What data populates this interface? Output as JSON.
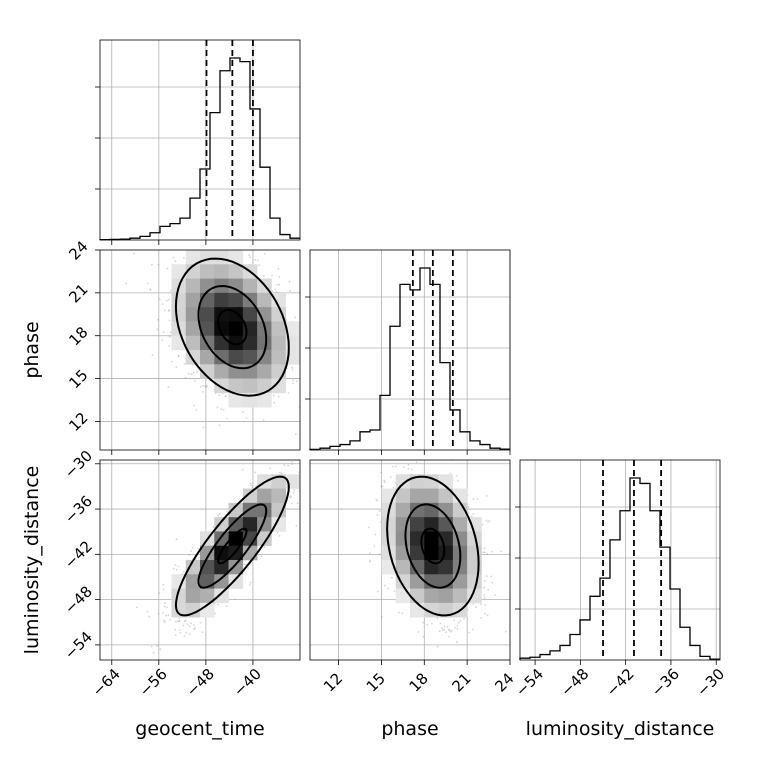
{
  "chart_data": {
    "type": "corner",
    "parameters": [
      {
        "name": "geocent_time",
        "range": [
          -66,
          -32
        ],
        "ticks": [
          -64,
          -56,
          -48,
          -40
        ],
        "tick_labels": [
          "−64",
          "−56",
          "−48",
          "−40"
        ],
        "quantiles": [
          -47.9,
          -43.5,
          -40.0
        ],
        "histogram": {
          "edges": [
            -66,
            -64.3,
            -62.6,
            -60.9,
            -59.2,
            -57.5,
            -55.8,
            -54.1,
            -52.4,
            -50.7,
            -49,
            -47.3,
            -45.6,
            -43.9,
            -42.2,
            -40.5,
            -38.8,
            -37.1,
            -35.4,
            -33.7,
            -32
          ],
          "counts": [
            0.2,
            0.3,
            0.5,
            1,
            2,
            4,
            7.5,
            9,
            12,
            23,
            39,
            70,
            93,
            100,
            98,
            72,
            40,
            12,
            3,
            1
          ]
        }
      },
      {
        "name": "phase",
        "range": [
          10,
          24
        ],
        "ticks": [
          12,
          15,
          18,
          21,
          24
        ],
        "tick_labels": [
          "12",
          "15",
          "18",
          "21",
          "24"
        ],
        "quantiles": [
          17.2,
          18.6,
          20.0
        ],
        "histogram": {
          "edges": [
            10,
            10.7,
            11.4,
            12.1,
            12.8,
            13.5,
            14.2,
            14.9,
            15.6,
            16.3,
            17,
            17.7,
            18.4,
            19.1,
            19.8,
            20.5,
            21.2,
            21.9,
            22.6,
            23.3,
            24
          ],
          "counts": [
            0.3,
            1,
            2,
            3,
            5,
            10,
            11,
            30,
            68,
            91,
            88,
            100,
            91,
            48,
            22,
            10,
            5,
            3,
            1,
            0.5
          ]
        }
      },
      {
        "name": "luminosity_distance",
        "range": [
          -56,
          -29.5
        ],
        "ticks": [
          -54,
          -48,
          -42,
          -36,
          -30
        ],
        "tick_labels": [
          "−54",
          "−48",
          "−42",
          "−36",
          "−30"
        ],
        "quantiles": [
          -45.0,
          -40.9,
          -37.3
        ],
        "histogram": {
          "edges": [
            -56,
            -54.675,
            -53.35,
            -52.025,
            -50.7,
            -49.375,
            -48.05,
            -46.725,
            -45.4,
            -44.075,
            -42.75,
            -41.425,
            -40.1,
            -38.775,
            -37.45,
            -36.125,
            -34.8,
            -33.475,
            -32.15,
            -30.825,
            -29.5
          ],
          "counts": [
            1,
            1.5,
            3,
            5,
            8,
            14,
            22,
            35,
            45,
            66,
            82,
            100,
            97,
            82,
            62,
            39,
            18,
            8,
            2,
            0.5
          ]
        }
      }
    ],
    "pairs": [
      {
        "x_param": 0,
        "y_param": 1,
        "center": [
          -43.5,
          18.6
        ],
        "sigma": [
          4.8,
          2.4
        ],
        "correlation": -0.3,
        "contour_levels": [
          0.5,
          1.2,
          2.0
        ]
      },
      {
        "x_param": 0,
        "y_param": 2,
        "center": [
          -43.5,
          -40.9
        ],
        "sigma": [
          4.8,
          4.6
        ],
        "correlation": 0.85,
        "contour_levels": [
          0.5,
          1.2,
          2.0
        ]
      },
      {
        "x_param": 1,
        "y_param": 2,
        "center": [
          18.6,
          -40.9
        ],
        "sigma": [
          1.6,
          4.6
        ],
        "correlation": -0.25,
        "contour_levels": [
          0.5,
          1.2,
          2.0
        ]
      }
    ],
    "grid": true,
    "colors": {
      "line": "#000000",
      "grid": "#b0b0b0",
      "samples": "#888888"
    }
  }
}
